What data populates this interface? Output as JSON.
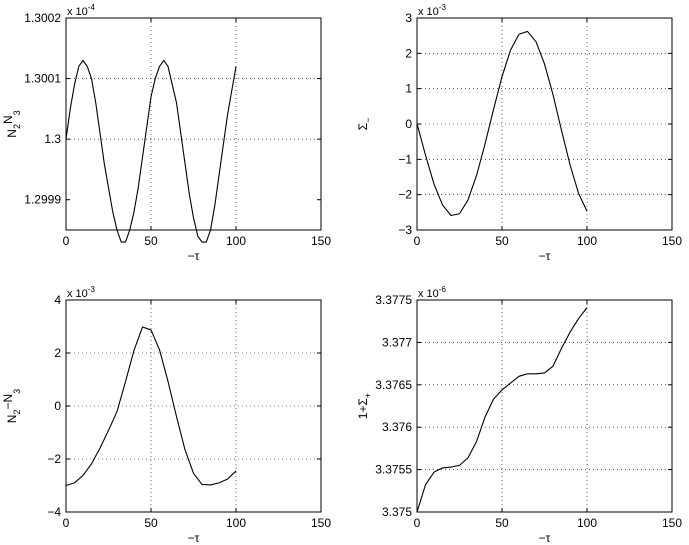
{
  "chart_data": [
    {
      "type": "line",
      "xlabel": "−τ",
      "ylabel_main": "N",
      "ylabel_sub1": "2",
      "ylabel_mid": "N",
      "ylabel_sub2": "3",
      "xlim": [
        0,
        150
      ],
      "ylim": [
        1.29985,
        1.3002
      ],
      "grid": true,
      "xticks": [
        0,
        50,
        100,
        150
      ],
      "xtick_labels": [
        "0",
        "50",
        "100",
        "150"
      ],
      "yticks": [
        1.2999,
        1.3,
        1.3001,
        1.3002
      ],
      "ytick_labels": [
        "1.2999",
        "1.3",
        "1.3001",
        "1.3002"
      ],
      "exponent_label": "x 10",
      "exponent_power": "-4",
      "x": [
        0,
        2.5,
        5,
        7.5,
        10,
        12.5,
        15,
        17.5,
        20,
        22.5,
        25,
        27.5,
        30,
        32.5,
        35,
        37.5,
        40,
        42.5,
        45,
        47.5,
        50,
        52.5,
        55,
        57.5,
        60,
        62.5,
        65,
        67.5,
        70,
        72.5,
        75,
        77.5,
        80,
        82.5,
        85,
        87.5,
        90,
        92.5,
        95,
        97.5,
        100
      ],
      "y": [
        1.3,
        1.30005,
        1.30009,
        1.30012,
        1.30013,
        1.30012,
        1.3001,
        1.30006,
        1.30001,
        1.29996,
        1.29992,
        1.29988,
        1.29985,
        1.29983,
        1.29983,
        1.29985,
        1.29988,
        1.29992,
        1.29997,
        1.30002,
        1.30007,
        1.3001,
        1.30012,
        1.30013,
        1.30012,
        1.30009,
        1.30006,
        1.30001,
        1.29996,
        1.29991,
        1.29987,
        1.29984,
        1.29983,
        1.29983,
        1.29985,
        1.29989,
        1.29994,
        1.29999,
        1.30004,
        1.30008,
        1.30012
      ]
    },
    {
      "type": "line",
      "xlabel": "−τ",
      "ylabel_main": "Σ",
      "ylabel_sub1": "−",
      "xlim": [
        0,
        150
      ],
      "ylim": [
        -0.003,
        0.003
      ],
      "grid": true,
      "xticks": [
        0,
        50,
        100,
        150
      ],
      "xtick_labels": [
        "0",
        "50",
        "100",
        "150"
      ],
      "yticks": [
        -0.003,
        -0.002,
        -0.001,
        0,
        0.001,
        0.002,
        0.003
      ],
      "ytick_labels": [
        "−3",
        "−2",
        "−1",
        "0",
        "1",
        "2",
        "3"
      ],
      "exponent_label": "x 10",
      "exponent_power": "-3",
      "x": [
        0,
        5,
        10,
        15,
        20,
        25,
        30,
        35,
        40,
        45,
        50,
        55,
        60,
        65,
        70,
        75,
        80,
        85,
        90,
        95,
        100
      ],
      "y": [
        1e-05,
        -0.00088,
        -0.0017,
        -0.00229,
        -0.00259,
        -0.00254,
        -0.00215,
        -0.00146,
        -0.00057,
        0.00041,
        0.00134,
        0.00209,
        0.00254,
        0.00262,
        0.00233,
        0.0017,
        0.00083,
        -0.00018,
        -0.00115,
        -0.00196,
        -0.00247
      ]
    },
    {
      "type": "line",
      "xlabel": "−τ",
      "ylabel_main": "N",
      "ylabel_sub1": "2",
      "ylabel_mid": "−N",
      "ylabel_sub2": "3",
      "xlim": [
        0,
        150
      ],
      "ylim": [
        -0.004,
        0.004
      ],
      "grid": true,
      "xticks": [
        0,
        50,
        100,
        150
      ],
      "xtick_labels": [
        "0",
        "50",
        "100",
        "150"
      ],
      "yticks": [
        -0.004,
        -0.002,
        0,
        0.002,
        0.004
      ],
      "ytick_labels": [
        "−4",
        "−2",
        "0",
        "2",
        "4"
      ],
      "exponent_label": "x 10",
      "exponent_power": "-3",
      "x": [
        0,
        5,
        10,
        15,
        20,
        25,
        30,
        35,
        40,
        45,
        50,
        55,
        60,
        65,
        70,
        75,
        80,
        85,
        90,
        95,
        100
      ],
      "y": [
        -0.003,
        -0.0029,
        -0.00262,
        -0.00218,
        -0.00159,
        -0.00092,
        -0.00021,
        0.00092,
        0.0021,
        0.00298,
        0.00287,
        0.00212,
        0.00093,
        -0.0004,
        -0.00165,
        -0.00254,
        -0.00296,
        -0.00298,
        -0.0029,
        -0.00276,
        -0.00245
      ]
    },
    {
      "type": "line",
      "xlabel": "−τ",
      "ylabel_main": "1+Σ",
      "ylabel_sub1": "+",
      "xlim": [
        0,
        150
      ],
      "ylim": [
        3.375,
        3.3775
      ],
      "grid": true,
      "xticks": [
        0,
        50,
        100,
        150
      ],
      "xtick_labels": [
        "0",
        "50",
        "100",
        "150"
      ],
      "yticks": [
        3.375,
        3.3755,
        3.376,
        3.3765,
        3.377,
        3.3775
      ],
      "ytick_labels": [
        "3.375",
        "3.3755",
        "3.376",
        "3.3765",
        "3.377",
        "3.3775"
      ],
      "exponent_label": "x 10",
      "exponent_power": "-6",
      "x": [
        0,
        5,
        10,
        15,
        20,
        25,
        30,
        35,
        40,
        45,
        50,
        55,
        60,
        65,
        70,
        75,
        80,
        85,
        90,
        95,
        100
      ],
      "y": [
        3.375,
        3.37532,
        3.37547,
        3.37552,
        3.37553,
        3.37555,
        3.37564,
        3.37583,
        3.37612,
        3.37633,
        3.37644,
        3.37652,
        3.3766,
        3.37663,
        3.37663,
        3.37664,
        3.37672,
        3.37693,
        3.37712,
        3.37728,
        3.37741
      ]
    }
  ]
}
